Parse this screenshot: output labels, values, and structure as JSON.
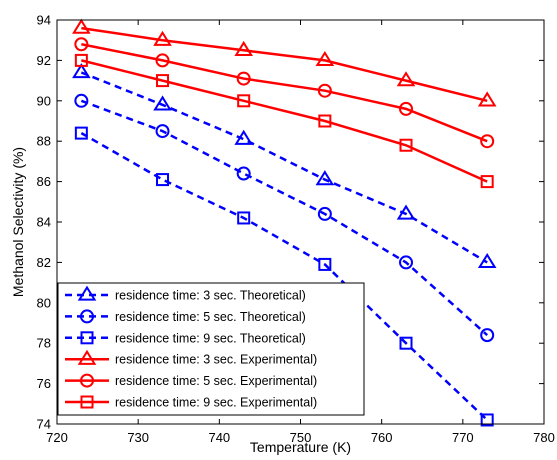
{
  "chart_data": {
    "type": "line",
    "title": "",
    "xlabel": "Temperature (K)",
    "ylabel": "Methanol Selectivity (%)",
    "xlim": [
      720,
      780
    ],
    "ylim": [
      74,
      94
    ],
    "xticks": [
      720,
      730,
      740,
      750,
      760,
      770,
      780
    ],
    "yticks": [
      74,
      76,
      78,
      80,
      82,
      84,
      86,
      88,
      90,
      92,
      94
    ],
    "grid": false,
    "legend_position": "bottom-left",
    "x": [
      723,
      733,
      743,
      753,
      763,
      773
    ],
    "series": [
      {
        "name": "residence time: 3 sec. Theoretical)",
        "values": [
          91.4,
          89.8,
          88.1,
          86.1,
          84.4,
          82.0
        ],
        "color": "#0000ff",
        "line": "dashed",
        "marker": "triangle"
      },
      {
        "name": "residence time: 5 sec. Theoretical)",
        "values": [
          90.0,
          88.5,
          86.4,
          84.4,
          82.0,
          78.4
        ],
        "color": "#0000ff",
        "line": "dashed",
        "marker": "circle"
      },
      {
        "name": "residence time: 9 sec. Theoretical)",
        "values": [
          88.4,
          86.1,
          84.2,
          81.9,
          78.0,
          74.2
        ],
        "color": "#0000ff",
        "line": "dashed",
        "marker": "square"
      },
      {
        "name": "residence time: 3 sec. Experimental)",
        "values": [
          93.6,
          93.0,
          92.5,
          92.0,
          91.0,
          90.0
        ],
        "color": "#ff0000",
        "line": "solid",
        "marker": "triangle"
      },
      {
        "name": "residence time: 5 sec. Experimental)",
        "values": [
          92.8,
          92.0,
          91.1,
          90.5,
          89.6,
          88.0
        ],
        "color": "#ff0000",
        "line": "solid",
        "marker": "circle"
      },
      {
        "name": "residence time: 9 sec. Experimental)",
        "values": [
          92.0,
          91.0,
          90.0,
          89.0,
          87.8,
          86.0
        ],
        "color": "#ff0000",
        "line": "solid",
        "marker": "square"
      }
    ]
  }
}
